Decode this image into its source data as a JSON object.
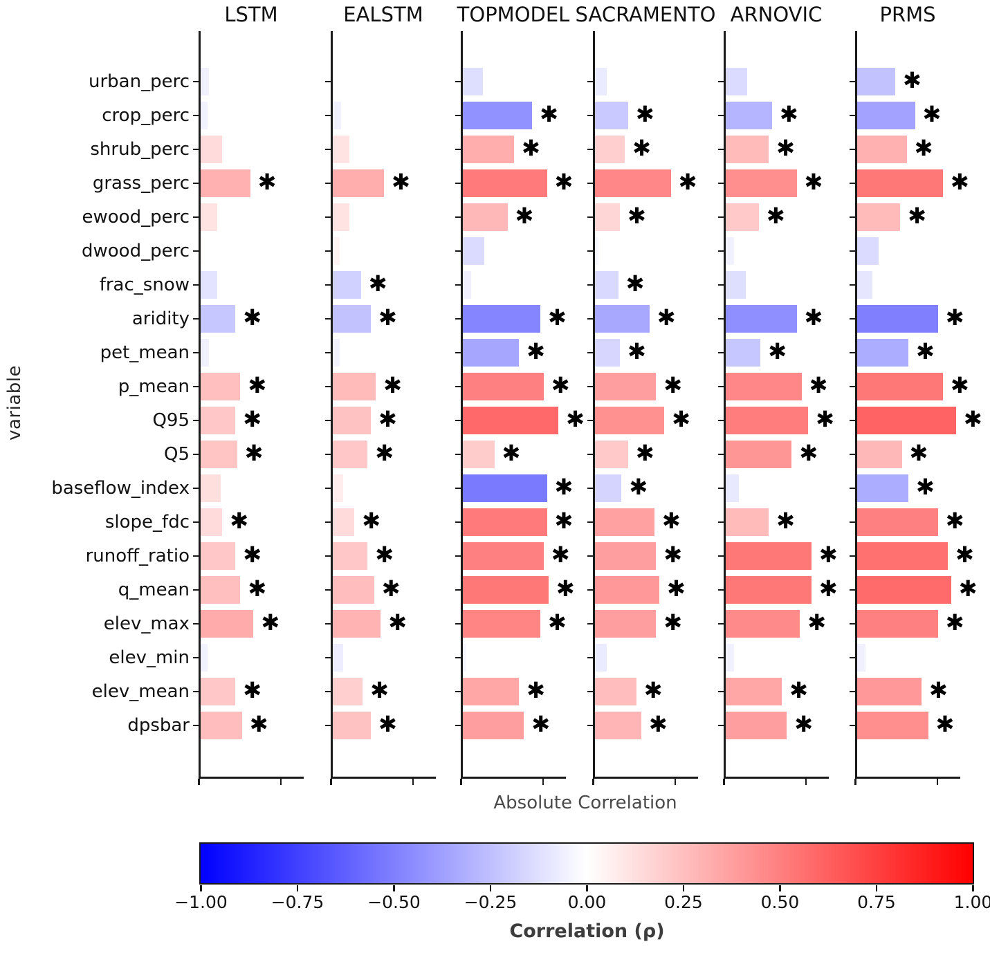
{
  "ylabel": "variable",
  "xlabel": "Absolute Correlation",
  "colorbar": {
    "label": "Correlation (ρ)",
    "min": -1.0,
    "max": 1.0,
    "tick_labels": [
      "−1.00",
      "−0.75",
      "−0.50",
      "−0.25",
      "0.00",
      "0.25",
      "0.50",
      "0.75",
      "1.00"
    ],
    "colors": [
      "#0000FF",
      "#FFFFFF",
      "#FF0000"
    ]
  },
  "significance_marker": "✱",
  "chart_data": {
    "type": "bar",
    "orientation": "horizontal",
    "xlabel": "Absolute Correlation",
    "ylabel": "variable",
    "xlim": [
      0,
      0.64
    ],
    "x_ticks": [
      0.0,
      0.5
    ],
    "grid": false,
    "bar_length_is": "absolute value of correlation",
    "bar_color_is": "signed correlation mapped on blue-white-red colormap",
    "categories": [
      "urban_perc",
      "crop_perc",
      "shrub_perc",
      "grass_perc",
      "ewood_perc",
      "dwood_perc",
      "frac_snow",
      "aridity",
      "pet_mean",
      "p_mean",
      "Q95",
      "Q5",
      "baseflow_index",
      "slope_fdc",
      "runoff_ratio",
      "q_mean",
      "elev_max",
      "elev_min",
      "elev_mean",
      "dpsbar"
    ],
    "series": [
      {
        "name": "LSTM",
        "values": [
          -0.06,
          -0.05,
          0.14,
          0.31,
          0.11,
          0.02,
          -0.11,
          -0.22,
          -0.06,
          0.25,
          0.22,
          0.23,
          0.13,
          0.14,
          0.22,
          0.25,
          0.33,
          -0.05,
          0.22,
          0.26
        ],
        "significant": [
          0,
          0,
          0,
          1,
          0,
          0,
          0,
          1,
          0,
          1,
          1,
          1,
          0,
          1,
          1,
          1,
          1,
          0,
          1,
          1
        ]
      },
      {
        "name": "EALSTM",
        "values": [
          -0.01,
          -0.06,
          0.11,
          0.32,
          0.11,
          0.05,
          -0.18,
          -0.24,
          -0.05,
          0.27,
          0.24,
          0.22,
          0.07,
          0.14,
          0.22,
          0.26,
          0.3,
          -0.07,
          0.19,
          0.24
        ],
        "significant": [
          0,
          0,
          0,
          1,
          0,
          0,
          1,
          1,
          0,
          1,
          1,
          1,
          0,
          1,
          1,
          1,
          1,
          0,
          1,
          1
        ]
      },
      {
        "name": "TOPMODEL",
        "values": [
          -0.13,
          -0.43,
          0.32,
          0.52,
          0.28,
          -0.14,
          -0.06,
          -0.48,
          -0.35,
          0.5,
          0.59,
          0.2,
          -0.52,
          0.52,
          0.5,
          0.53,
          0.48,
          -0.03,
          0.35,
          0.38
        ],
        "significant": [
          0,
          1,
          1,
          1,
          1,
          0,
          0,
          1,
          1,
          1,
          1,
          1,
          1,
          1,
          1,
          1,
          1,
          0,
          1,
          1
        ]
      },
      {
        "name": "SACRAMENTO",
        "values": [
          -0.08,
          -0.21,
          0.19,
          0.47,
          0.16,
          -0.03,
          -0.15,
          -0.34,
          -0.16,
          0.38,
          0.43,
          0.21,
          -0.17,
          0.37,
          0.38,
          0.4,
          0.38,
          -0.08,
          0.26,
          0.29
        ],
        "significant": [
          0,
          1,
          1,
          1,
          1,
          0,
          1,
          1,
          1,
          1,
          1,
          1,
          1,
          1,
          1,
          1,
          1,
          0,
          1,
          1
        ]
      },
      {
        "name": "ARNOVIC",
        "values": [
          -0.14,
          -0.29,
          0.27,
          0.44,
          0.21,
          -0.06,
          -0.13,
          -0.44,
          -0.22,
          0.47,
          0.51,
          0.41,
          -0.09,
          0.27,
          0.53,
          0.53,
          0.46,
          -0.06,
          0.35,
          0.38
        ],
        "significant": [
          0,
          1,
          1,
          1,
          1,
          0,
          0,
          1,
          1,
          1,
          1,
          1,
          0,
          1,
          1,
          1,
          1,
          0,
          1,
          1
        ]
      },
      {
        "name": "PRMS",
        "values": [
          -0.24,
          -0.36,
          0.31,
          0.53,
          0.27,
          -0.14,
          -0.1,
          -0.5,
          -0.32,
          0.53,
          0.61,
          0.28,
          -0.32,
          0.5,
          0.56,
          0.58,
          0.5,
          -0.06,
          0.4,
          0.44
        ],
        "significant": [
          1,
          1,
          1,
          1,
          1,
          0,
          0,
          1,
          1,
          1,
          1,
          1,
          1,
          1,
          1,
          1,
          1,
          0,
          1,
          1
        ]
      }
    ]
  }
}
